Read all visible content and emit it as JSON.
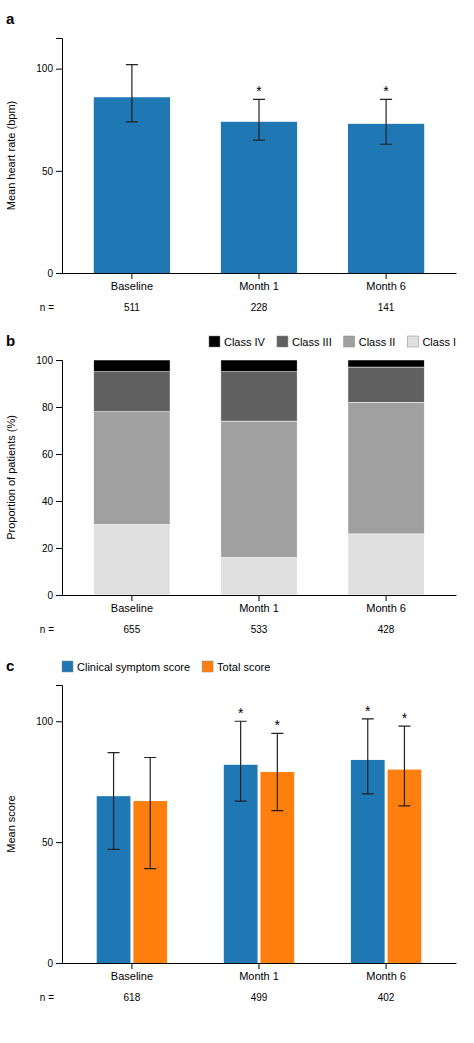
{
  "chart_data": [
    {
      "type": "bar",
      "title": "a",
      "categories": [
        "Baseline",
        "Month 1",
        "Month 6"
      ],
      "values": [
        86,
        74,
        73
      ],
      "errors_upper": [
        16,
        11,
        12
      ],
      "errors_lower": [
        12,
        9,
        10
      ],
      "significance_labels": [
        null,
        "*",
        "*"
      ],
      "ylabel": "Mean heart rate (bpm)",
      "ylim": [
        0,
        115
      ],
      "yticks": [
        0,
        50,
        100
      ],
      "sample_size_label": "n =",
      "sample_sizes": [
        511,
        228,
        141
      ]
    },
    {
      "type": "bar",
      "title": "b",
      "stacked": true,
      "categories": [
        "Baseline",
        "Month 1",
        "Month 6"
      ],
      "series": [
        {
          "name": "Class I",
          "color": "#e0e0e0",
          "values": [
            30,
            16,
            26
          ]
        },
        {
          "name": "Class II",
          "color": "#a0a0a0",
          "values": [
            48,
            58,
            56
          ]
        },
        {
          "name": "Class III",
          "color": "#606060",
          "values": [
            17,
            21,
            15
          ]
        },
        {
          "name": "Class IV",
          "color": "#000000",
          "values": [
            5,
            5,
            3
          ]
        }
      ],
      "legend": "upper right",
      "ylabel": "Proportion of patients (%)",
      "ylim": [
        0,
        100
      ],
      "yticks": [
        0,
        20,
        40,
        60,
        80,
        100
      ],
      "sample_size_label": "n =",
      "sample_sizes": [
        655,
        533,
        428
      ]
    },
    {
      "type": "bar",
      "title": "c",
      "categories": [
        "Baseline",
        "Month 1",
        "Month 6"
      ],
      "series": [
        {
          "name": "Clinical symptom score",
          "values": [
            69,
            82,
            84
          ],
          "errors_upper": [
            18,
            18,
            17
          ],
          "errors_lower": [
            22,
            15,
            14
          ],
          "significance_labels": [
            null,
            "*",
            "*"
          ]
        },
        {
          "name": "Total score",
          "values": [
            67,
            79,
            80
          ],
          "errors_upper": [
            18,
            16,
            18
          ],
          "errors_lower": [
            28,
            16,
            15
          ],
          "significance_labels": [
            null,
            "*",
            "*"
          ]
        }
      ],
      "legend": "upper left",
      "ylabel": "Mean score",
      "ylim": [
        0,
        115
      ],
      "yticks": [
        0,
        50,
        100
      ],
      "sample_size_label": "n =",
      "sample_sizes": [
        618,
        499,
        402
      ]
    }
  ]
}
